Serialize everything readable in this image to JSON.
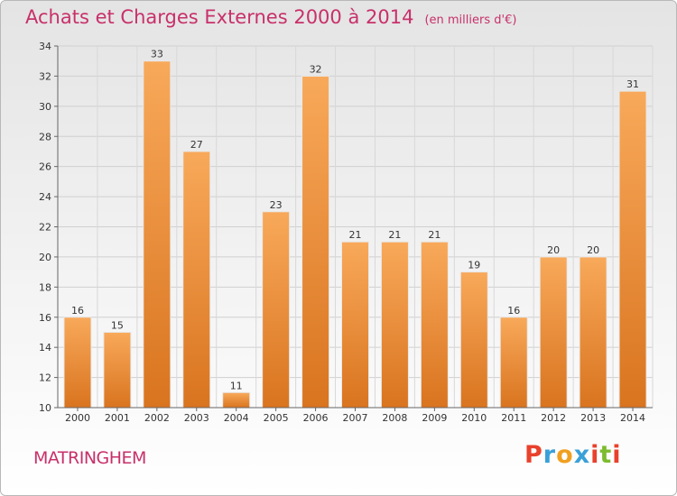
{
  "header": {
    "title": "Achats et Charges Externes 2000 à 2014",
    "unit": "(en milliers d'€)"
  },
  "commune": "MATRINGHEM",
  "brand": {
    "letters": [
      "P",
      "r",
      "o",
      "x",
      "i",
      "t",
      "i"
    ],
    "colors": [
      "#e8412c",
      "#3aa0d8",
      "#f0a020",
      "#3aa0d8",
      "#e8412c",
      "#7dbb2f",
      "#e8412c"
    ]
  },
  "colors": {
    "bar_light": "#f8a95a",
    "bar_dark": "#d9741f",
    "title": "#c8306a"
  },
  "chart_data": {
    "type": "bar",
    "title": "Achats et Charges Externes 2000 à 2014",
    "ylabel": "en milliers d'€",
    "categories": [
      "2000",
      "2001",
      "2002",
      "2003",
      "2004",
      "2005",
      "2006",
      "2007",
      "2008",
      "2009",
      "2010",
      "2011",
      "2012",
      "2013",
      "2014"
    ],
    "values": [
      16,
      15,
      33,
      27,
      11,
      23,
      32,
      21,
      21,
      21,
      19,
      16,
      20,
      20,
      31
    ],
    "ylim": [
      10,
      34
    ],
    "yticks": [
      10,
      12,
      14,
      16,
      18,
      20,
      22,
      24,
      26,
      28,
      30,
      32,
      34
    ],
    "grid": true
  }
}
